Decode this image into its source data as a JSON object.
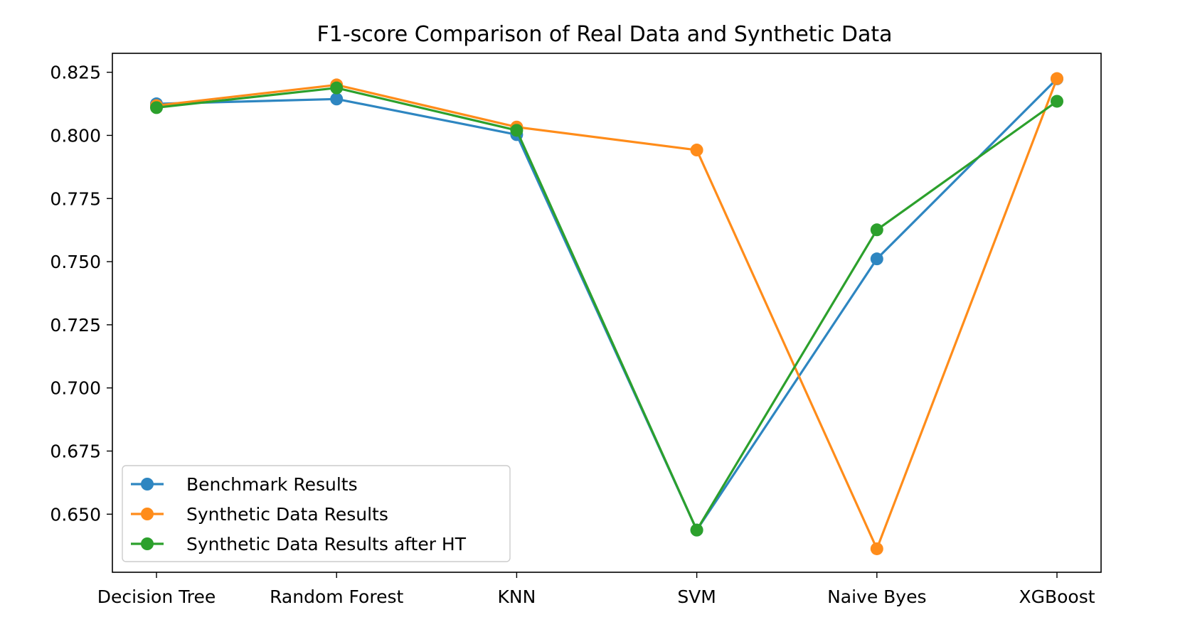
{
  "chart_data": {
    "type": "line",
    "title": "F1-score Comparison of Real Data and Synthetic Data",
    "xlabel": "",
    "ylabel": "",
    "categories": [
      "Decision Tree",
      "Random Forest",
      "KNN",
      "SVM",
      "Naive Byes",
      "XGBoost"
    ],
    "ylim": [
      0.627,
      0.8325
    ],
    "yticks": [
      0.65,
      0.675,
      0.7,
      0.725,
      0.75,
      0.775,
      0.8,
      0.825
    ],
    "ytick_labels": [
      "0.650",
      "0.675",
      "0.700",
      "0.725",
      "0.750",
      "0.775",
      "0.800",
      "0.825"
    ],
    "grid": false,
    "legend_position": "lower-left",
    "series": [
      {
        "name": "Benchmark Results",
        "color": "#2e86c1",
        "marker": "circle",
        "values": [
          0.8125,
          0.8144,
          0.8003,
          0.6437,
          0.7511,
          0.8224
        ]
      },
      {
        "name": "Synthetic Data Results",
        "color": "#ff8c1a",
        "marker": "circle",
        "values": [
          0.8118,
          0.82,
          0.8033,
          0.7942,
          0.6363,
          0.8225
        ]
      },
      {
        "name": "Synthetic Data Results after HT",
        "color": "#2ca02c",
        "marker": "circle",
        "values": [
          0.811,
          0.8188,
          0.802,
          0.6437,
          0.7626,
          0.8135
        ]
      }
    ]
  }
}
